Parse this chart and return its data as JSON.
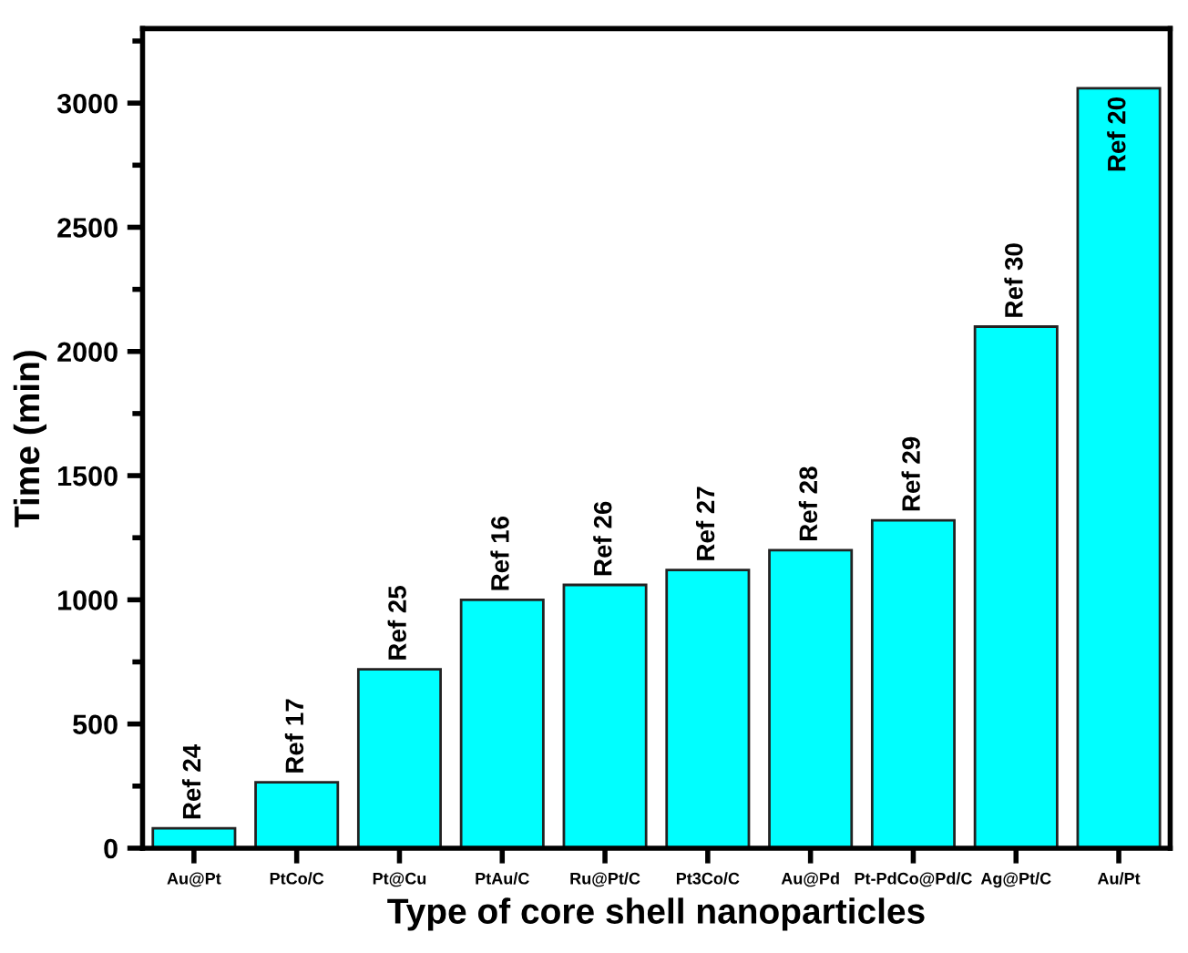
{
  "chart_data": {
    "type": "bar",
    "xlabel": "Type of core shell nanoparticles",
    "ylabel": "Time (min)",
    "categories": [
      "Au@Pt",
      "PtCo/C",
      "Pt@Cu",
      "PtAu/C",
      "Ru@Pt/C",
      "Pt3Co/C",
      "Au@Pd",
      "Pt-PdCo@Pd/C",
      "Ag@Pt/C",
      "Au/Pt"
    ],
    "values": [
      80,
      265,
      720,
      1000,
      1060,
      1120,
      1200,
      1320,
      2100,
      3060
    ],
    "color": "#00ffff",
    "ylim": [
      0,
      3300
    ],
    "yticks": [
      0,
      500,
      1000,
      1500,
      2000,
      2500,
      3000
    ],
    "grid": false,
    "legend": false,
    "annotations": [
      {
        "text": "Ref 24",
        "x": "Au@Pt",
        "y": 80
      },
      {
        "text": "Ref 17",
        "x": "PtCo/C",
        "y": 265
      },
      {
        "text": "Ref 25",
        "x": "Pt@Cu",
        "y": 720
      },
      {
        "text": "Ref 16",
        "x": "PtAu/C",
        "y": 1000
      },
      {
        "text": "Ref 26",
        "x": "Ru@Pt/C",
        "y": 1060
      },
      {
        "text": "Ref 27",
        "x": "Pt3Co/C",
        "y": 1120
      },
      {
        "text": "Ref 28",
        "x": "Au@Pd",
        "y": 1200
      },
      {
        "text": "Ref 29",
        "x": "Pt-PdCo@Pd/C",
        "y": 1320
      },
      {
        "text": "Ref 30",
        "x": "Ag@Pt/C",
        "y": 2100
      },
      {
        "text": "Ref 20",
        "x": "Au/Pt",
        "y": 3060
      }
    ]
  }
}
